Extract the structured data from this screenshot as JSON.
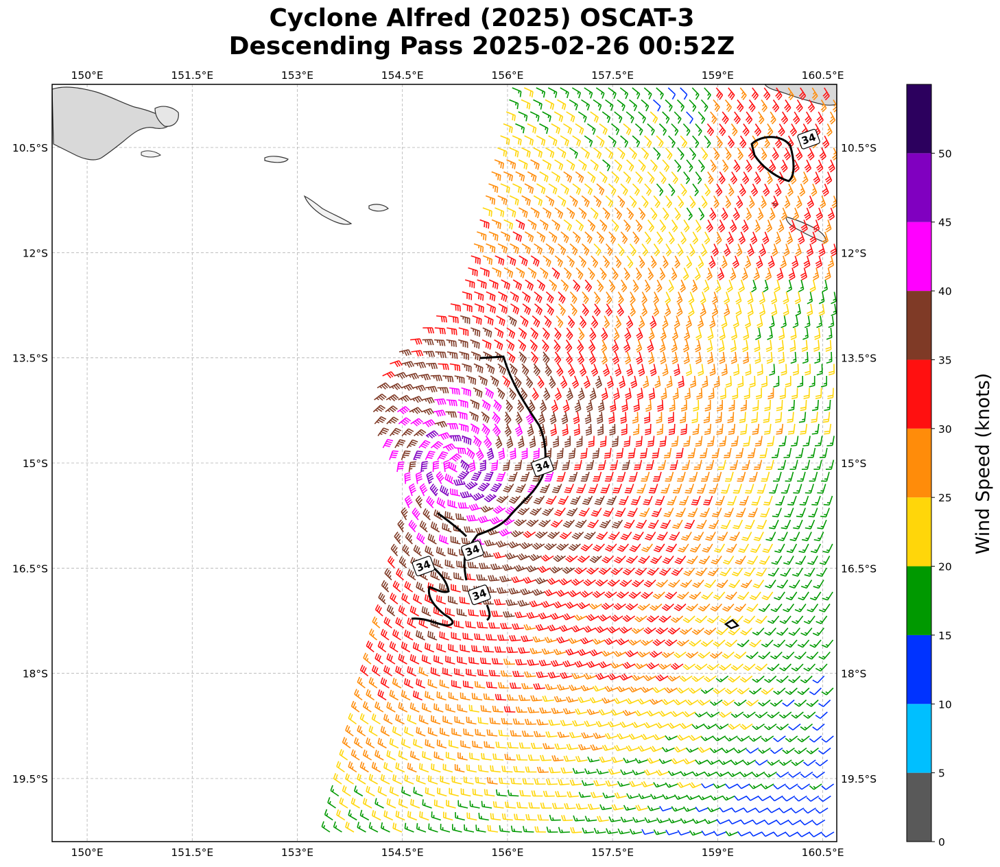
{
  "title": {
    "line1": "Cyclone Alfred (2025) OSCAT-3",
    "line2": "Descending Pass 2025-02-26 00:52Z"
  },
  "map": {
    "lon_range": [
      149.5,
      160.7
    ],
    "lat_range": [
      -20.4,
      -9.6
    ],
    "lon_ticks": [
      {
        "value": 150.0,
        "label": "150°E"
      },
      {
        "value": 151.5,
        "label": "151.5°E"
      },
      {
        "value": 153.0,
        "label": "153°E"
      },
      {
        "value": 154.5,
        "label": "154.5°E"
      },
      {
        "value": 156.0,
        "label": "156°E"
      },
      {
        "value": 157.5,
        "label": "157.5°E"
      },
      {
        "value": 159.0,
        "label": "159°E"
      },
      {
        "value": 160.5,
        "label": "160.5°E"
      }
    ],
    "lat_ticks": [
      {
        "value": -10.5,
        "label": "10.5°S"
      },
      {
        "value": -12.0,
        "label": "12°S"
      },
      {
        "value": -13.5,
        "label": "13.5°S"
      },
      {
        "value": -15.0,
        "label": "15°S"
      },
      {
        "value": -16.5,
        "label": "16.5°S"
      },
      {
        "value": -18.0,
        "label": "18°S"
      },
      {
        "value": -19.5,
        "label": "19.5°S"
      }
    ],
    "gridlines": true,
    "storm_center": {
      "lon": 155.3,
      "lat": -15.05
    },
    "contour_level": "34",
    "contour_labels": [
      {
        "lon": 160.3,
        "lat": -10.38,
        "text": "34"
      },
      {
        "lon": 156.5,
        "lat": -15.05,
        "text": "34"
      },
      {
        "lon": 155.5,
        "lat": -16.25,
        "text": "34"
      },
      {
        "lon": 154.8,
        "lat": -16.47,
        "text": "34"
      },
      {
        "lon": 155.6,
        "lat": -16.88,
        "text": "34"
      }
    ]
  },
  "colorbar": {
    "title": "Wind Speed (knots)",
    "levels": [
      {
        "min": 0,
        "max": 5,
        "color": "#595959"
      },
      {
        "min": 5,
        "max": 10,
        "color": "#00bfff"
      },
      {
        "min": 10,
        "max": 15,
        "color": "#0033ff"
      },
      {
        "min": 15,
        "max": 20,
        "color": "#009900"
      },
      {
        "min": 20,
        "max": 25,
        "color": "#ffd60a"
      },
      {
        "min": 25,
        "max": 30,
        "color": "#ff8c0a"
      },
      {
        "min": 30,
        "max": 35,
        "color": "#ff1010"
      },
      {
        "min": 35,
        "max": 40,
        "color": "#7f3a26"
      },
      {
        "min": 40,
        "max": 45,
        "color": "#ff00ff"
      },
      {
        "min": 45,
        "max": 50,
        "color": "#8000c0"
      },
      {
        "min": 50,
        "max": 55,
        "color": "#2c005e"
      }
    ],
    "tick_labels": [
      "0",
      "5",
      "10",
      "15",
      "20",
      "25",
      "30",
      "35",
      "40",
      "45",
      "50"
    ]
  }
}
